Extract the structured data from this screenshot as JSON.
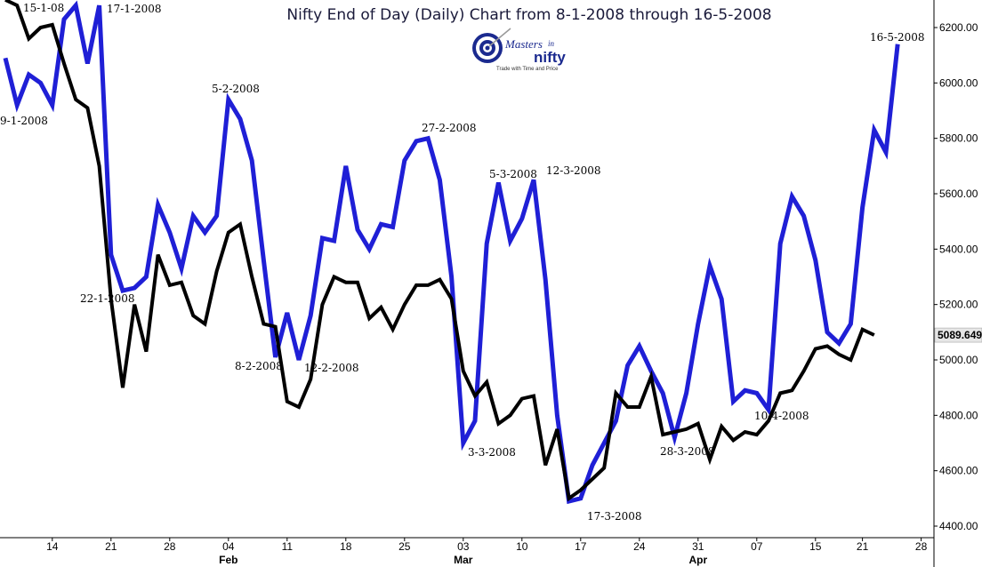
{
  "chart_data": {
    "type": "line",
    "title": "Nifty End of Day (Daily) Chart from 8-1-2008 through 16-5-2008",
    "logo": {
      "main": "Masters",
      "in": "in",
      "big": "nifty",
      "tagline": "Trade with Time and Price"
    },
    "ylim": [
      4400,
      6300
    ],
    "y_ticks": [
      4400,
      4600,
      4800,
      5000,
      5200,
      5400,
      5600,
      5800,
      6000,
      6200
    ],
    "y_tick_labels": [
      "4400.00",
      "4600.00",
      "4800.00",
      "5000.00",
      "5200.00",
      "5400.00",
      "5600.00",
      "5800.00",
      "6000.00",
      "6200.00"
    ],
    "last_value_label": "5089.6499",
    "last_value": 5089.65,
    "x_ticks": [
      {
        "i": 4,
        "label": "14"
      },
      {
        "i": 9,
        "label": "21"
      },
      {
        "i": 14,
        "label": "28"
      },
      {
        "i": 19,
        "label": "04"
      },
      {
        "i": 24,
        "label": "11"
      },
      {
        "i": 29,
        "label": "18"
      },
      {
        "i": 34,
        "label": "25"
      },
      {
        "i": 39,
        "label": "03"
      },
      {
        "i": 44,
        "label": "10"
      },
      {
        "i": 49,
        "label": "17"
      },
      {
        "i": 54,
        "label": "24"
      },
      {
        "i": 59,
        "label": "31"
      },
      {
        "i": 64,
        "label": "07"
      },
      {
        "i": 69,
        "label": "15"
      },
      {
        "i": 73,
        "label": "21"
      },
      {
        "i": 78,
        "label": "28"
      }
    ],
    "month_labels": [
      {
        "i": 19,
        "label": "Feb"
      },
      {
        "i": 39,
        "label": "Mar"
      },
      {
        "i": 59,
        "label": "Apr"
      }
    ],
    "series": [
      {
        "color": "#1f1fd6",
        "values": [
          6090,
          5920,
          6030,
          6000,
          5920,
          6230,
          6280,
          6070,
          6280,
          5380,
          5250,
          5260,
          5300,
          5560,
          5460,
          5330,
          5520,
          5460,
          5520,
          5940,
          5870,
          5720,
          5360,
          5010,
          5170,
          5000,
          5160,
          5440,
          5430,
          5700,
          5470,
          5400,
          5490,
          5480,
          5720,
          5790,
          5800,
          5650,
          5300,
          4700,
          4780,
          5420,
          5640,
          5430,
          5510,
          5650,
          5290,
          4800,
          4490,
          4500,
          4620,
          4700,
          4780,
          4980,
          5050,
          4960,
          4880,
          4720,
          4880,
          5130,
          5340,
          5220,
          4850,
          4890,
          4880,
          4820,
          5420,
          5590,
          5520,
          5360,
          5100,
          5060,
          5130,
          5550,
          5830,
          5750,
          6140
        ]
      },
      {
        "color": "#000000",
        "values": [
          6300,
          6280,
          6160,
          6200,
          6210,
          6070,
          5940,
          5910,
          5700,
          5220,
          4900,
          5200,
          5030,
          5380,
          5270,
          5280,
          5160,
          5130,
          5320,
          5460,
          5490,
          5300,
          5130,
          5120,
          4850,
          4830,
          4930,
          5200,
          5300,
          5280,
          5280,
          5150,
          5190,
          5110,
          5200,
          5270,
          5270,
          5290,
          5220,
          4960,
          4870,
          4920,
          4770,
          4800,
          4860,
          4870,
          4620,
          4750,
          4500,
          4530,
          4570,
          4610,
          4880,
          4830,
          4830,
          4940,
          4730,
          4740,
          4750,
          4770,
          4640,
          4760,
          4710,
          4740,
          4730,
          4780,
          4880,
          4890,
          4960,
          5040,
          5050,
          5020,
          5000,
          5110,
          5090
        ]
      }
    ],
    "annotations": [
      {
        "text": "15-1-08",
        "i": 2
      },
      {
        "text": "17-1-2008",
        "i": 8
      },
      {
        "text": "9-1-2008",
        "i": 1
      },
      {
        "text": "22-1-2008",
        "i": 10
      },
      {
        "text": "5-2-2008",
        "i": 19
      },
      {
        "text": "8-2-2008",
        "i": 23
      },
      {
        "text": "12-2-2008",
        "i": 25
      },
      {
        "text": "27-2-2008",
        "i": 36
      },
      {
        "text": "5-3-2008",
        "i": 42
      },
      {
        "text": "12-3-2008",
        "i": 45
      },
      {
        "text": "3-3-2008",
        "i": 39
      },
      {
        "text": "17-3-2008",
        "i": 48
      },
      {
        "text": "28-3-2008",
        "i": 57
      },
      {
        "text": "10-4-2008",
        "i": 65
      },
      {
        "text": "16-5-2008",
        "i": 76
      }
    ]
  }
}
